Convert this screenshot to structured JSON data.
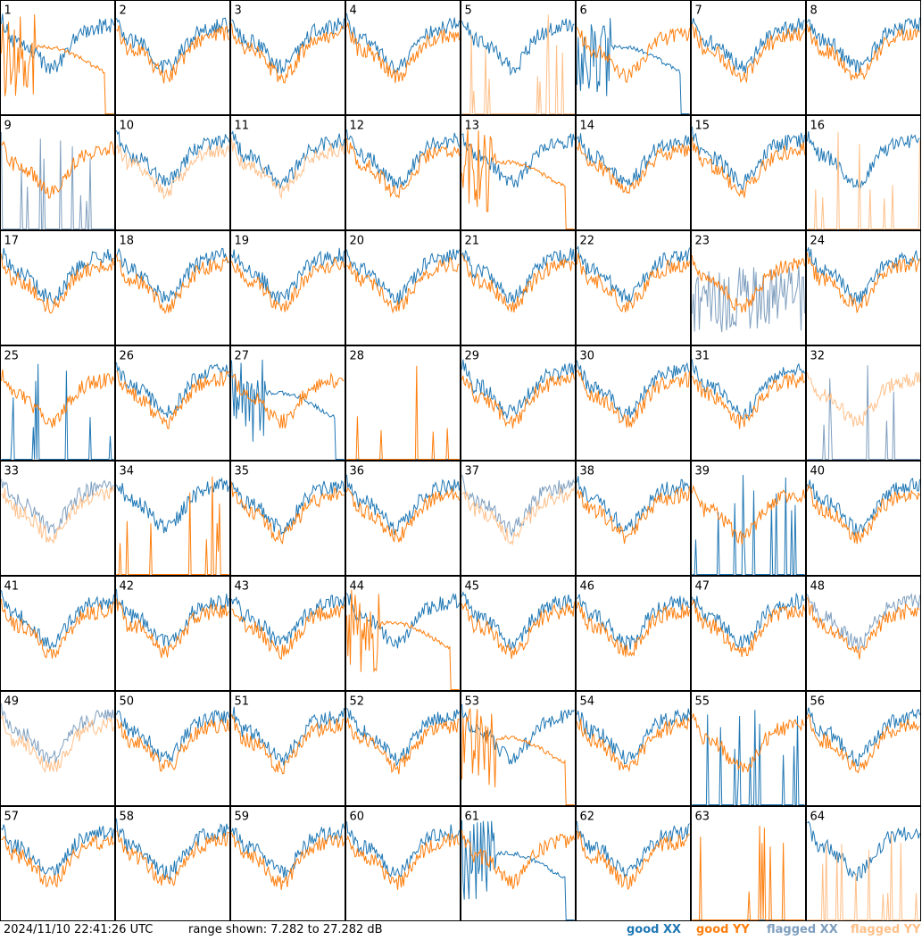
{
  "colors": {
    "good_xx": "#1f77b4",
    "good_yy": "#ff7f0e",
    "flagged_xx": "#7f9fbf",
    "flagged_yy": "#ffc08a"
  },
  "footer": {
    "timestamp": "2024/11/10 22:41:26 UTC",
    "range_text": "range shown: 7.282 to 27.282 dB",
    "legend": [
      {
        "key": "good_xx",
        "label": "good XX"
      },
      {
        "key": "good_yy",
        "label": "good YY"
      },
      {
        "key": "flagged_xx",
        "label": "flagged XX"
      },
      {
        "key": "flagged_yy",
        "label": "flagged YY"
      }
    ]
  },
  "chart_data": {
    "type": "line",
    "layout": "small-multiples 8x8",
    "ylim_db": [
      7.282,
      27.282
    ],
    "series_names": [
      "good XX",
      "good YY",
      "flagged XX",
      "flagged YY"
    ],
    "panels": [
      {
        "id": "1",
        "xx": {
          "flag": "good",
          "shape": "normal"
        },
        "yy": {
          "flag": "good",
          "shape": "dropout"
        }
      },
      {
        "id": "2",
        "xx": {
          "flag": "good",
          "shape": "normal"
        },
        "yy": {
          "flag": "good",
          "shape": "normal"
        }
      },
      {
        "id": "3",
        "xx": {
          "flag": "good",
          "shape": "normal"
        },
        "yy": {
          "flag": "good",
          "shape": "normal"
        }
      },
      {
        "id": "4",
        "xx": {
          "flag": "good",
          "shape": "normal"
        },
        "yy": {
          "flag": "good",
          "shape": "normal"
        }
      },
      {
        "id": "5",
        "xx": {
          "flag": "good",
          "shape": "normal"
        },
        "yy": {
          "flag": "flagged",
          "shape": "spikes"
        }
      },
      {
        "id": "6",
        "xx": {
          "flag": "good",
          "shape": "dropout"
        },
        "yy": {
          "flag": "good",
          "shape": "normal"
        }
      },
      {
        "id": "7",
        "xx": {
          "flag": "good",
          "shape": "normal"
        },
        "yy": {
          "flag": "good",
          "shape": "normal"
        }
      },
      {
        "id": "8",
        "xx": {
          "flag": "good",
          "shape": "normal"
        },
        "yy": {
          "flag": "good",
          "shape": "normal"
        }
      },
      {
        "id": "9",
        "xx": {
          "flag": "flagged",
          "shape": "spikes"
        },
        "yy": {
          "flag": "good",
          "shape": "normal"
        }
      },
      {
        "id": "10",
        "xx": {
          "flag": "good",
          "shape": "normal"
        },
        "yy": {
          "flag": "flagged",
          "shape": "normal"
        }
      },
      {
        "id": "11",
        "xx": {
          "flag": "good",
          "shape": "normal"
        },
        "yy": {
          "flag": "flagged",
          "shape": "normal"
        }
      },
      {
        "id": "12",
        "xx": {
          "flag": "good",
          "shape": "normal"
        },
        "yy": {
          "flag": "good",
          "shape": "normal"
        }
      },
      {
        "id": "13",
        "xx": {
          "flag": "good",
          "shape": "normal"
        },
        "yy": {
          "flag": "good",
          "shape": "dropout"
        }
      },
      {
        "id": "14",
        "xx": {
          "flag": "good",
          "shape": "normal"
        },
        "yy": {
          "flag": "good",
          "shape": "normal"
        }
      },
      {
        "id": "15",
        "xx": {
          "flag": "good",
          "shape": "normal"
        },
        "yy": {
          "flag": "good",
          "shape": "normal"
        }
      },
      {
        "id": "16",
        "xx": {
          "flag": "good",
          "shape": "normal"
        },
        "yy": {
          "flag": "flagged",
          "shape": "spikes"
        }
      },
      {
        "id": "17",
        "xx": {
          "flag": "good",
          "shape": "normal"
        },
        "yy": {
          "flag": "good",
          "shape": "normal"
        }
      },
      {
        "id": "18",
        "xx": {
          "flag": "good",
          "shape": "normal"
        },
        "yy": {
          "flag": "good",
          "shape": "normal"
        }
      },
      {
        "id": "19",
        "xx": {
          "flag": "good",
          "shape": "normal"
        },
        "yy": {
          "flag": "good",
          "shape": "normal"
        }
      },
      {
        "id": "20",
        "xx": {
          "flag": "good",
          "shape": "normal"
        },
        "yy": {
          "flag": "good",
          "shape": "normal"
        }
      },
      {
        "id": "21",
        "xx": {
          "flag": "good",
          "shape": "normal"
        },
        "yy": {
          "flag": "good",
          "shape": "normal"
        }
      },
      {
        "id": "22",
        "xx": {
          "flag": "good",
          "shape": "normal"
        },
        "yy": {
          "flag": "good",
          "shape": "normal"
        }
      },
      {
        "id": "23",
        "xx": {
          "flag": "flagged",
          "shape": "noisy"
        },
        "yy": {
          "flag": "good",
          "shape": "normal"
        }
      },
      {
        "id": "24",
        "xx": {
          "flag": "good",
          "shape": "normal"
        },
        "yy": {
          "flag": "good",
          "shape": "normal"
        }
      },
      {
        "id": "25",
        "xx": {
          "flag": "good",
          "shape": "spikes"
        },
        "yy": {
          "flag": "good",
          "shape": "normal"
        }
      },
      {
        "id": "26",
        "xx": {
          "flag": "good",
          "shape": "normal"
        },
        "yy": {
          "flag": "good",
          "shape": "normal"
        }
      },
      {
        "id": "27",
        "xx": {
          "flag": "good",
          "shape": "dropout"
        },
        "yy": {
          "flag": "good",
          "shape": "normal"
        }
      },
      {
        "id": "28",
        "xx": {
          "flag": "good",
          "shape": "flat"
        },
        "yy": {
          "flag": "good",
          "shape": "spikes"
        }
      },
      {
        "id": "29",
        "xx": {
          "flag": "good",
          "shape": "normal"
        },
        "yy": {
          "flag": "good",
          "shape": "normal"
        }
      },
      {
        "id": "30",
        "xx": {
          "flag": "good",
          "shape": "normal"
        },
        "yy": {
          "flag": "good",
          "shape": "normal"
        }
      },
      {
        "id": "31",
        "xx": {
          "flag": "good",
          "shape": "normal"
        },
        "yy": {
          "flag": "good",
          "shape": "normal"
        }
      },
      {
        "id": "32",
        "xx": {
          "flag": "flagged",
          "shape": "spikes"
        },
        "yy": {
          "flag": "flagged",
          "shape": "normal"
        }
      },
      {
        "id": "33",
        "xx": {
          "flag": "flagged",
          "shape": "normal"
        },
        "yy": {
          "flag": "flagged",
          "shape": "normal"
        }
      },
      {
        "id": "34",
        "xx": {
          "flag": "good",
          "shape": "normal"
        },
        "yy": {
          "flag": "good",
          "shape": "spikes"
        }
      },
      {
        "id": "35",
        "xx": {
          "flag": "good",
          "shape": "normal"
        },
        "yy": {
          "flag": "good",
          "shape": "normal"
        }
      },
      {
        "id": "36",
        "xx": {
          "flag": "good",
          "shape": "normal"
        },
        "yy": {
          "flag": "good",
          "shape": "normal"
        }
      },
      {
        "id": "37",
        "xx": {
          "flag": "flagged",
          "shape": "normal"
        },
        "yy": {
          "flag": "flagged",
          "shape": "normal"
        }
      },
      {
        "id": "38",
        "xx": {
          "flag": "good",
          "shape": "normal"
        },
        "yy": {
          "flag": "good",
          "shape": "normal"
        }
      },
      {
        "id": "39",
        "xx": {
          "flag": "good",
          "shape": "spikes"
        },
        "yy": {
          "flag": "good",
          "shape": "normal"
        }
      },
      {
        "id": "40",
        "xx": {
          "flag": "good",
          "shape": "normal"
        },
        "yy": {
          "flag": "good",
          "shape": "normal"
        }
      },
      {
        "id": "41",
        "xx": {
          "flag": "good",
          "shape": "normal"
        },
        "yy": {
          "flag": "good",
          "shape": "normal"
        }
      },
      {
        "id": "42",
        "xx": {
          "flag": "good",
          "shape": "normal"
        },
        "yy": {
          "flag": "good",
          "shape": "normal"
        }
      },
      {
        "id": "43",
        "xx": {
          "flag": "good",
          "shape": "normal"
        },
        "yy": {
          "flag": "good",
          "shape": "normal"
        }
      },
      {
        "id": "44",
        "xx": {
          "flag": "good",
          "shape": "normal"
        },
        "yy": {
          "flag": "good",
          "shape": "dropout"
        }
      },
      {
        "id": "45",
        "xx": {
          "flag": "good",
          "shape": "normal"
        },
        "yy": {
          "flag": "good",
          "shape": "normal"
        }
      },
      {
        "id": "46",
        "xx": {
          "flag": "good",
          "shape": "normal"
        },
        "yy": {
          "flag": "good",
          "shape": "normal"
        }
      },
      {
        "id": "47",
        "xx": {
          "flag": "good",
          "shape": "normal"
        },
        "yy": {
          "flag": "good",
          "shape": "normal"
        }
      },
      {
        "id": "48",
        "xx": {
          "flag": "flagged",
          "shape": "normal"
        },
        "yy": {
          "flag": "good",
          "shape": "normal"
        }
      },
      {
        "id": "49",
        "xx": {
          "flag": "flagged",
          "shape": "normal"
        },
        "yy": {
          "flag": "flagged",
          "shape": "normal"
        }
      },
      {
        "id": "50",
        "xx": {
          "flag": "good",
          "shape": "normal"
        },
        "yy": {
          "flag": "good",
          "shape": "normal"
        }
      },
      {
        "id": "51",
        "xx": {
          "flag": "good",
          "shape": "normal"
        },
        "yy": {
          "flag": "good",
          "shape": "normal"
        }
      },
      {
        "id": "52",
        "xx": {
          "flag": "good",
          "shape": "normal"
        },
        "yy": {
          "flag": "good",
          "shape": "normal"
        }
      },
      {
        "id": "53",
        "xx": {
          "flag": "good",
          "shape": "normal"
        },
        "yy": {
          "flag": "good",
          "shape": "dropout"
        }
      },
      {
        "id": "54",
        "xx": {
          "flag": "good",
          "shape": "normal"
        },
        "yy": {
          "flag": "good",
          "shape": "normal"
        }
      },
      {
        "id": "55",
        "xx": {
          "flag": "good",
          "shape": "spikes"
        },
        "yy": {
          "flag": "good",
          "shape": "normal"
        }
      },
      {
        "id": "56",
        "xx": {
          "flag": "good",
          "shape": "normal"
        },
        "yy": {
          "flag": "good",
          "shape": "normal"
        }
      },
      {
        "id": "57",
        "xx": {
          "flag": "good",
          "shape": "normal"
        },
        "yy": {
          "flag": "good",
          "shape": "normal"
        }
      },
      {
        "id": "58",
        "xx": {
          "flag": "good",
          "shape": "normal"
        },
        "yy": {
          "flag": "good",
          "shape": "normal"
        }
      },
      {
        "id": "59",
        "xx": {
          "flag": "good",
          "shape": "normal"
        },
        "yy": {
          "flag": "good",
          "shape": "normal"
        }
      },
      {
        "id": "60",
        "xx": {
          "flag": "good",
          "shape": "normal"
        },
        "yy": {
          "flag": "good",
          "shape": "normal"
        }
      },
      {
        "id": "61",
        "xx": {
          "flag": "good",
          "shape": "dropout"
        },
        "yy": {
          "flag": "good",
          "shape": "normal"
        }
      },
      {
        "id": "62",
        "xx": {
          "flag": "good",
          "shape": "normal"
        },
        "yy": {
          "flag": "good",
          "shape": "normal"
        }
      },
      {
        "id": "63",
        "xx": {
          "flag": "good",
          "shape": "flat"
        },
        "yy": {
          "flag": "good",
          "shape": "spikes"
        }
      },
      {
        "id": "64",
        "xx": {
          "flag": "good",
          "shape": "normal"
        },
        "yy": {
          "flag": "flagged",
          "shape": "spikes"
        }
      }
    ]
  }
}
